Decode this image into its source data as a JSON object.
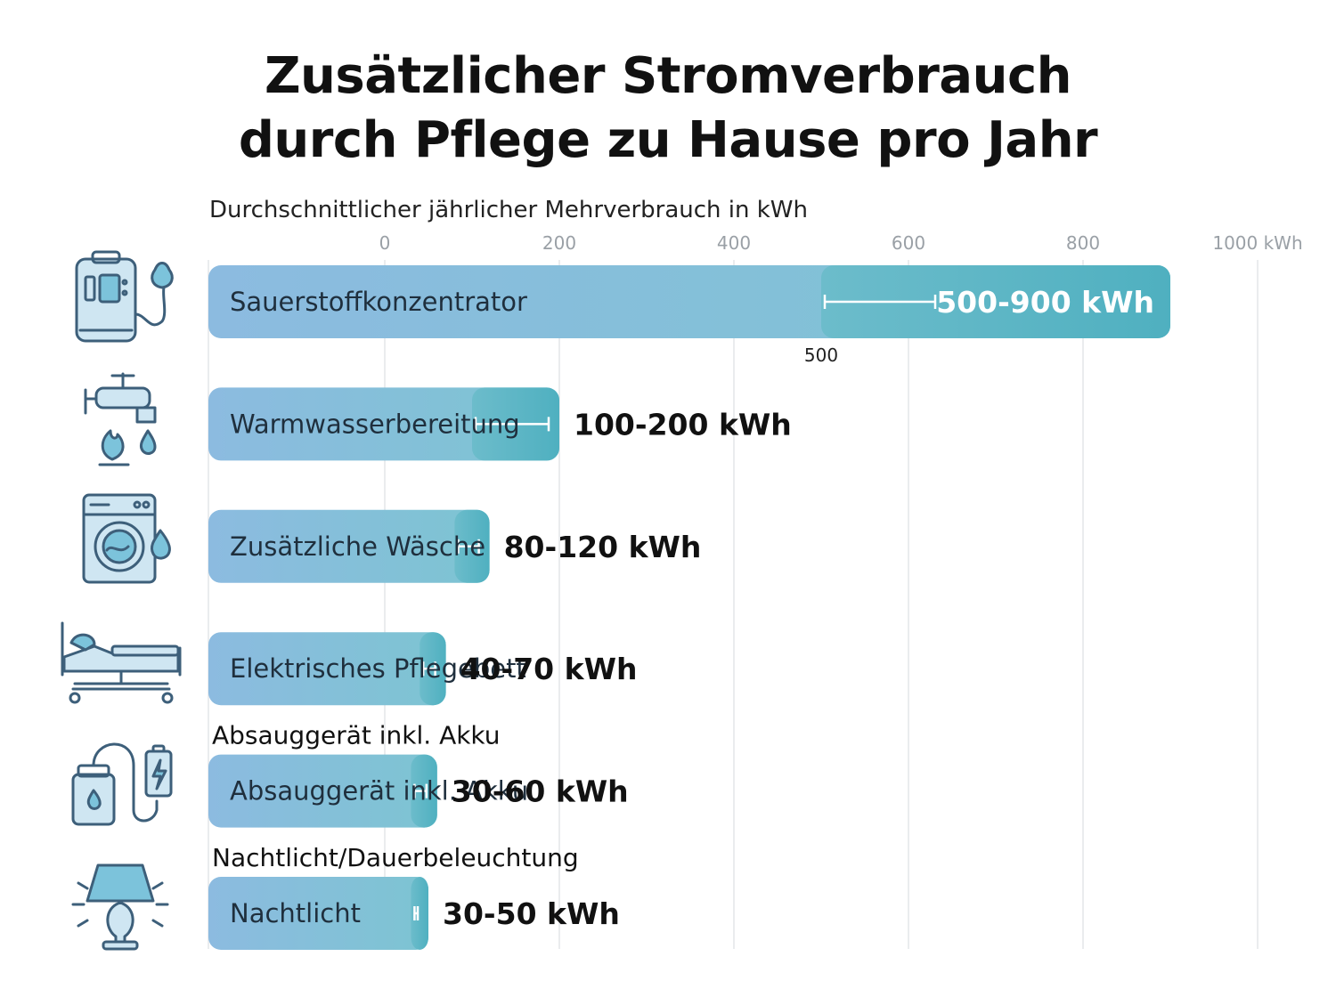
{
  "chart_data": {
    "type": "bar",
    "orientation": "horizontal",
    "title_lines": [
      "Zusätzlicher Stromverbrauch",
      "durch Pflege zu Hause pro Jahr"
    ],
    "subtitle": "Durchschnittlicher jährlicher Mehrverbrauch in kWh",
    "x_ticks": [
      "0",
      "200",
      "400",
      "600",
      "800",
      "1000 kWh"
    ],
    "x_tick_values": [
      0,
      200,
      400,
      600,
      800,
      1000
    ],
    "xlim": [
      0,
      1000
    ],
    "grid": true,
    "categories": [
      "Sauerstoffkonzentrator",
      "Warmwasserbereitung",
      "Zusätzliche Wäsche",
      "Elektrisches Pflegebett",
      "Absauggerät inkl. Akku",
      "Nachtlicht"
    ],
    "icons": [
      "oxygen-concentrator-icon",
      "water-tap-flame-icon",
      "washing-machine-icon",
      "care-bed-icon",
      "suction-device-battery-icon",
      "night-lamp-icon"
    ],
    "range_min": [
      500,
      100,
      80,
      40,
      30,
      30
    ],
    "range_max": [
      900,
      200,
      120,
      70,
      60,
      50
    ],
    "value_labels": [
      "500-900 kWh",
      "100-200 kWh",
      "80-120 kWh",
      "40-70 kWh",
      "30-60 kWh",
      "30-50 kWh"
    ],
    "annotations": [
      {
        "row": 0,
        "text": "500"
      }
    ],
    "row_extra_labels": [
      {
        "row": 4,
        "text": "Absauggerät inkl. Akku"
      },
      {
        "row": 5,
        "text": "Nachtlicht/Dauerbeleuchtung"
      }
    ],
    "colors": {
      "bar_start": "#8cbbe0",
      "bar_end": "#7dc4d2",
      "range_start": "#6cbccb",
      "range_end": "#4fb0c0",
      "grid": "#e3e6e9"
    }
  }
}
